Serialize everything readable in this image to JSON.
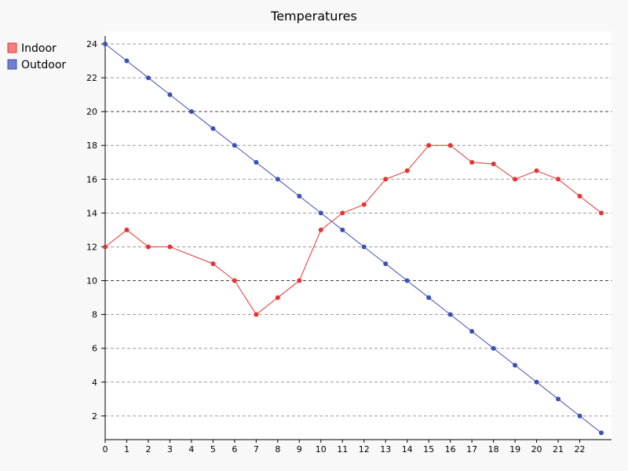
{
  "chart_data": {
    "type": "line",
    "title": "Temperatures",
    "xlabel": "",
    "ylabel": "",
    "x": [
      0,
      1,
      2,
      3,
      4,
      5,
      6,
      7,
      8,
      9,
      10,
      11,
      12,
      13,
      14,
      15,
      16,
      17,
      18,
      19,
      20,
      21,
      22,
      23
    ],
    "x_tick_labels": [
      "0",
      "1",
      "2",
      "3",
      "4",
      "5",
      "6",
      "7",
      "8",
      "9",
      "10",
      "11",
      "12",
      "13",
      "14",
      "15",
      "16",
      "17",
      "18",
      "19",
      "20",
      "21",
      "22"
    ],
    "xlim": [
      0,
      23
    ],
    "ylim": [
      0.6,
      24
    ],
    "y_ticks": [
      2,
      4,
      6,
      8,
      10,
      12,
      14,
      16,
      18,
      20,
      22,
      24
    ],
    "y_tick_labels": [
      "2",
      "4",
      "6",
      "8",
      "10",
      "12",
      "14",
      "16",
      "18",
      "20",
      "22",
      "24"
    ],
    "emphasized_gridlines": [
      10,
      20
    ],
    "grid": true,
    "legend_position": "top-left",
    "series": [
      {
        "name": "Indoor",
        "color": "#e83232",
        "legend_color": "#f08080",
        "values": [
          12,
          13,
          12,
          12,
          null,
          11,
          10,
          8,
          9,
          10,
          13,
          14,
          14.5,
          16,
          16.5,
          18,
          18,
          17,
          16.9,
          16,
          16.5,
          16,
          15,
          14
        ]
      },
      {
        "name": "Outdoor",
        "color": "#3c4fb4",
        "legend_color": "#7080d0",
        "values": [
          24,
          23,
          22,
          21,
          20,
          19,
          18,
          17,
          16,
          15,
          14,
          13,
          12,
          11,
          10,
          9,
          8,
          7,
          6,
          5,
          4,
          3,
          2,
          1
        ]
      }
    ]
  }
}
